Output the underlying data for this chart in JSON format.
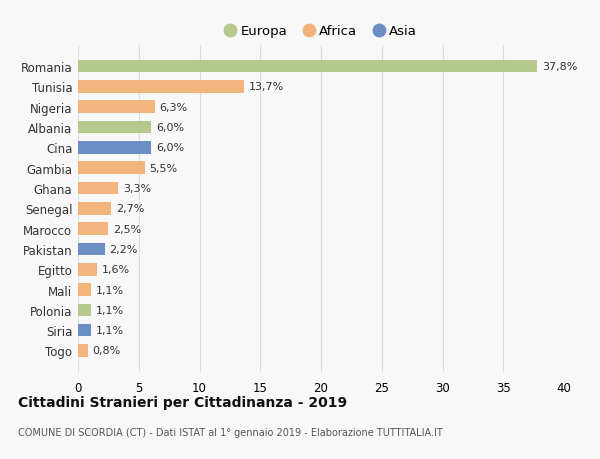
{
  "countries": [
    "Romania",
    "Tunisia",
    "Nigeria",
    "Albania",
    "Cina",
    "Gambia",
    "Ghana",
    "Senegal",
    "Marocco",
    "Pakistan",
    "Egitto",
    "Mali",
    "Polonia",
    "Siria",
    "Togo"
  ],
  "values": [
    37.8,
    13.7,
    6.3,
    6.0,
    6.0,
    5.5,
    3.3,
    2.7,
    2.5,
    2.2,
    1.6,
    1.1,
    1.1,
    1.1,
    0.8
  ],
  "labels": [
    "37,8%",
    "13,7%",
    "6,3%",
    "6,0%",
    "6,0%",
    "5,5%",
    "3,3%",
    "2,7%",
    "2,5%",
    "2,2%",
    "1,6%",
    "1,1%",
    "1,1%",
    "1,1%",
    "0,8%"
  ],
  "continents": [
    "Europa",
    "Africa",
    "Africa",
    "Europa",
    "Asia",
    "Africa",
    "Africa",
    "Africa",
    "Africa",
    "Asia",
    "Africa",
    "Africa",
    "Europa",
    "Asia",
    "Africa"
  ],
  "colors": {
    "Europa": "#b5c98e",
    "Africa": "#f0b47c",
    "Asia": "#6b8fc4"
  },
  "title": "Cittadini Stranieri per Cittadinanza - 2019",
  "subtitle": "COMUNE DI SCORDIA (CT) - Dati ISTAT al 1° gennaio 2019 - Elaborazione TUTTITALIA.IT",
  "xlim": [
    0,
    40
  ],
  "xticks": [
    0,
    5,
    10,
    15,
    20,
    25,
    30,
    35,
    40
  ],
  "background_color": "#f8f8f8",
  "grid_color": "#dddddd"
}
